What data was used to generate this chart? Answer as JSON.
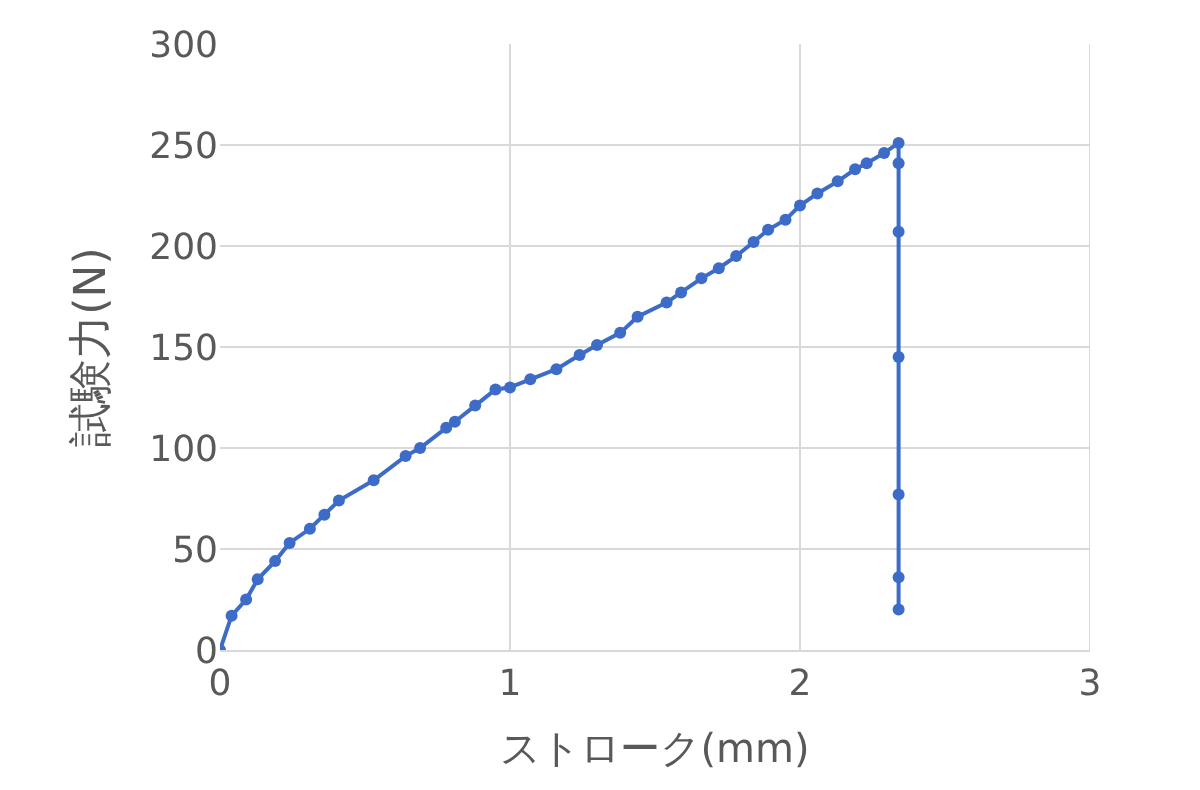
{
  "chart_data": {
    "type": "line",
    "xlabel": "ストローク(mm)",
    "ylabel": "試験力(N)",
    "xlim": [
      0,
      3
    ],
    "xticks": [
      0,
      1,
      2,
      3
    ],
    "ylim": [
      0,
      300
    ],
    "yticks": [
      0,
      50,
      100,
      150,
      200,
      250,
      300
    ],
    "grid": true,
    "marker": "circle",
    "line_style": "solid",
    "series": [
      {
        "color": "#3d6cc8",
        "x": [
          0,
          0.04,
          0.09,
          0.13,
          0.19,
          0.24,
          0.31,
          0.36,
          0.41,
          0.53,
          0.64,
          0.69,
          0.78,
          0.81,
          0.88,
          0.95,
          1.0,
          1.07,
          1.16,
          1.24,
          1.3,
          1.38,
          1.44,
          1.54,
          1.59,
          1.66,
          1.72,
          1.78,
          1.84,
          1.89,
          1.95,
          2.0,
          2.06,
          2.13,
          2.19,
          2.23,
          2.29,
          2.34,
          2.34,
          2.34,
          2.34,
          2.34,
          2.34,
          2.34
        ],
        "values": [
          0,
          17,
          25,
          35,
          44,
          53,
          60,
          67,
          74,
          84,
          96,
          100,
          110,
          113,
          121,
          129,
          130,
          134,
          139,
          146,
          151,
          157,
          165,
          172,
          177,
          184,
          189,
          195,
          202,
          208,
          213,
          220,
          226,
          232,
          238,
          241,
          246,
          251,
          241,
          207,
          145,
          77,
          36,
          20
        ]
      }
    ]
  }
}
